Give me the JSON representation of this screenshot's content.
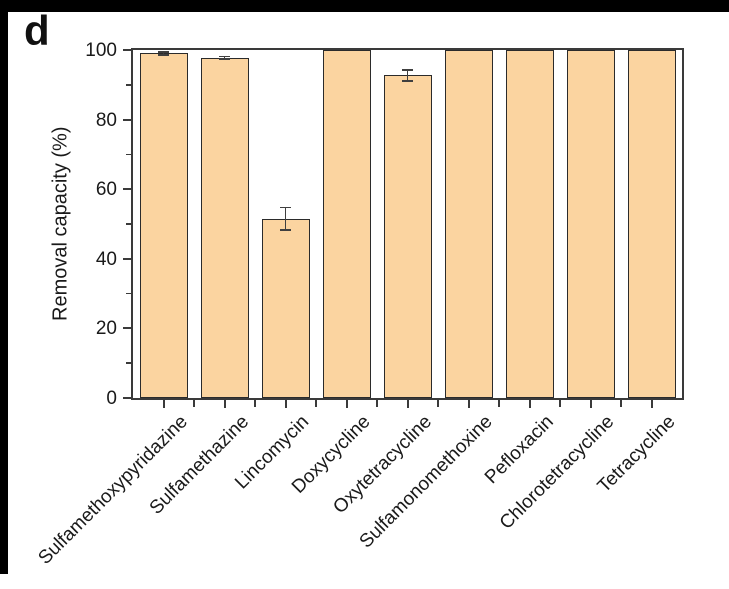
{
  "panel_label": "d",
  "colors": {
    "bar_fill": "#FBD4A0",
    "bar_edge": "#2b2b2b",
    "axis": "#3a3a3a",
    "error_bar": "#3f3f3f",
    "frame": "#000000",
    "text": "#1a1a1a",
    "background": "#ffffff"
  },
  "chart_data": {
    "type": "bar",
    "title": "",
    "categories": [
      "Sulfamethoxypyridazine",
      "Sulfamethazine",
      "Lincomycin",
      "Doxycycline",
      "Oxytetracycline",
      "Sulfamonomethoxine",
      "Pefloxacin",
      "Chlorotetracycline",
      "Tetracycline"
    ],
    "values": [
      99,
      97.8,
      51.5,
      100,
      92.7,
      100,
      100,
      100,
      100
    ],
    "errors": [
      0.4,
      0.4,
      3.2,
      0,
      1.6,
      0,
      0,
      0,
      0
    ],
    "xlabel": "",
    "ylabel": "Removal capacity (%)",
    "ylim": [
      0,
      100
    ],
    "yticks": [
      0,
      20,
      40,
      60,
      80,
      100
    ],
    "minor_tick_step": 10,
    "grid": false,
    "legend": "none"
  }
}
